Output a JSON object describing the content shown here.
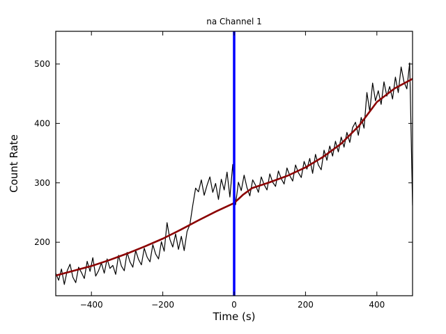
{
  "chart_data": {
    "type": "line",
    "title": "na Channel 1",
    "xlabel": "Time (s)",
    "ylabel": "Count Rate",
    "xlim": [
      -500,
      500
    ],
    "ylim": [
      110,
      555
    ],
    "xticks": [
      -400,
      -200,
      0,
      200,
      400
    ],
    "xtick_labels": [
      "−400",
      "−200",
      "0",
      "200",
      "400"
    ],
    "yticks": [
      200,
      300,
      400,
      500
    ],
    "ytick_labels": [
      "200",
      "300",
      "400",
      "500"
    ],
    "grid": false,
    "legend": null,
    "background": "#ffffff",
    "frame_color": "#000000",
    "vline": {
      "x": 0,
      "color": "#0000ff",
      "width": 3.5
    },
    "series": [
      {
        "name": "count-rate-data",
        "color": "#000000",
        "width": 1.2,
        "x_start": -500,
        "x_step": 8,
        "y": [
          148,
          136,
          155,
          129,
          152,
          163,
          141,
          132,
          158,
          149,
          139,
          168,
          151,
          174,
          143,
          152,
          165,
          148,
          172,
          156,
          161,
          146,
          178,
          160,
          152,
          183,
          167,
          158,
          186,
          171,
          162,
          190,
          175,
          167,
          196,
          180,
          172,
          201,
          185,
          233,
          205,
          192,
          214,
          188,
          210,
          186,
          218,
          230,
          262,
          291,
          285,
          305,
          279,
          296,
          310,
          284,
          299,
          272,
          306,
          288,
          318,
          276,
          331,
          263,
          301,
          287,
          313,
          292,
          278,
          305,
          296,
          284,
          310,
          297,
          288,
          315,
          301,
          294,
          320,
          307,
          298,
          325,
          312,
          303,
          330,
          317,
          309,
          336,
          323,
          341,
          316,
          348,
          330,
          322,
          355,
          338,
          362,
          345,
          370,
          352,
          377,
          360,
          385,
          368,
          393,
          402,
          380,
          410,
          392,
          452,
          420,
          468,
          438,
          455,
          432,
          470,
          446,
          462,
          441,
          478,
          452,
          495,
          470,
          458,
          502,
          262
        ]
      },
      {
        "name": "smoothed-model",
        "color": "#8b0000",
        "width": 2.6,
        "x": [
          -500,
          -450,
          -400,
          -350,
          -300,
          -250,
          -200,
          -150,
          -100,
          -50,
          0,
          25,
          50,
          100,
          150,
          200,
          250,
          300,
          350,
          400,
          450,
          500
        ],
        "y": [
          144,
          152,
          160,
          170,
          181,
          193,
          206,
          221,
          237,
          252,
          266,
          280,
          291,
          301,
          312,
          326,
          344,
          366,
          396,
          436,
          459,
          475
        ]
      }
    ]
  }
}
